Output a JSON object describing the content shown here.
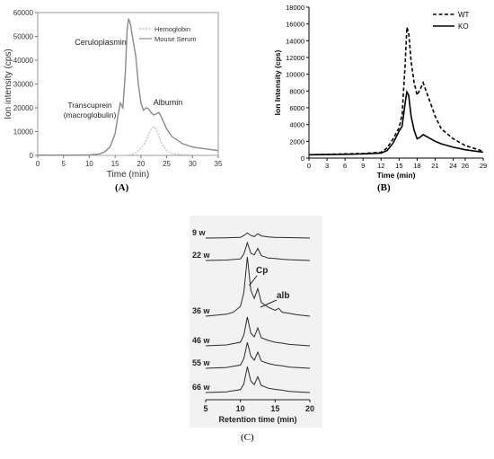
{
  "panels": {
    "a": "(A)",
    "b": "(B)",
    "c": "(C)"
  },
  "chart_data": [
    {
      "type": "line",
      "panel": "(A)",
      "xlabel": "Time (min)",
      "ylabel": "Ion intensity (cps)",
      "xlim": [
        0,
        35
      ],
      "ylim": [
        0,
        60000
      ],
      "xticks": [
        0,
        5,
        10,
        15,
        20,
        25,
        30,
        35
      ],
      "yticks": [
        0,
        10000,
        20000,
        30000,
        40000,
        50000,
        60000
      ],
      "grid": false,
      "legend_position": "top-right",
      "annotations": [
        "Ceruloplasmin",
        "Transcuprein",
        "(macroglobulin)",
        "Albumin"
      ],
      "series": [
        {
          "name": "Hemoglobin",
          "style": "dotted",
          "color": "#b5b5b5",
          "x": [
            0,
            10,
            17,
            18,
            19,
            20,
            21,
            21.5,
            22,
            22.5,
            23,
            23.5,
            24,
            25,
            26,
            28,
            30,
            35
          ],
          "y": [
            0,
            0,
            0,
            200,
            1000,
            3000,
            6000,
            9000,
            11000,
            12000,
            11000,
            8000,
            5000,
            2000,
            800,
            300,
            100,
            0
          ]
        },
        {
          "name": "Mouse Serum",
          "style": "solid",
          "color": "#8a8a8a",
          "x": [
            0,
            5,
            10,
            12,
            13,
            14,
            15,
            15.5,
            16,
            16.5,
            17,
            17.3,
            17.6,
            18,
            18.5,
            19,
            19.5,
            20,
            20.5,
            21,
            21.5,
            22,
            22.5,
            23,
            23.5,
            24,
            25,
            26,
            28,
            30,
            35
          ],
          "y": [
            100,
            100,
            200,
            600,
            1500,
            3500,
            9000,
            16000,
            22000,
            20000,
            35000,
            52000,
            57500,
            55000,
            48000,
            42000,
            30000,
            22000,
            19000,
            20000,
            19500,
            18000,
            17000,
            17500,
            18000,
            16000,
            11000,
            8000,
            5000,
            3500,
            2000
          ]
        }
      ]
    },
    {
      "type": "line",
      "panel": "(B)",
      "xlabel": "Time (min)",
      "ylabel": "Ion Intensity (cps)",
      "xlim": [
        0,
        29
      ],
      "ylim": [
        0,
        18000
      ],
      "xticks": [
        0,
        3,
        6,
        9,
        12,
        15,
        18,
        21,
        24,
        26,
        29
      ],
      "yticks": [
        0,
        2000,
        4000,
        6000,
        8000,
        10000,
        12000,
        14000,
        16000,
        18000
      ],
      "grid": false,
      "legend_position": "top-right",
      "series": [
        {
          "name": "WT",
          "style": "dashed",
          "color": "#000000",
          "x": [
            0,
            3,
            6,
            9,
            12,
            13,
            14,
            15,
            15.5,
            16,
            16.3,
            16.6,
            17,
            17.5,
            18,
            18.5,
            19,
            20,
            21,
            22,
            24,
            26,
            29
          ],
          "y": [
            400,
            450,
            500,
            550,
            700,
            1200,
            2300,
            3600,
            5200,
            11000,
            15600,
            15000,
            11500,
            9000,
            7500,
            8200,
            9000,
            7000,
            5000,
            3500,
            2300,
            1500,
            800
          ]
        },
        {
          "name": "KO",
          "style": "solid",
          "color": "#000000",
          "x": [
            0,
            3,
            6,
            9,
            12,
            13,
            14,
            15,
            15.5,
            16,
            16.3,
            16.6,
            17,
            17.5,
            18,
            18.5,
            19,
            20,
            21,
            22,
            24,
            26,
            29
          ],
          "y": [
            400,
            420,
            450,
            500,
            600,
            900,
            1800,
            3200,
            3800,
            6500,
            7900,
            7500,
            5000,
            3300,
            2300,
            2500,
            2800,
            2400,
            2000,
            1700,
            1300,
            1000,
            700
          ]
        }
      ]
    },
    {
      "type": "line",
      "panel": "(C)",
      "xlabel": "Retention time (min)",
      "xlim": [
        5,
        20
      ],
      "xticks": [
        5,
        10,
        15,
        20
      ],
      "annotations": [
        "Cp",
        "alb"
      ],
      "peaks": {
        "cp_x": 11,
        "alb_x": 12.5
      },
      "series": [
        {
          "name": "9 w",
          "x": [
            5,
            8,
            10,
            10.5,
            11,
            11.5,
            12,
            12.5,
            13,
            14,
            15,
            16,
            17,
            20
          ],
          "y": [
            0,
            0.02,
            0.05,
            0.18,
            0.35,
            0.18,
            0.1,
            0.3,
            0.15,
            0.08,
            0.05,
            0.04,
            0.03,
            0
          ]
        },
        {
          "name": "22 w",
          "x": [
            5,
            8,
            10,
            10.5,
            11,
            11.5,
            12,
            12.5,
            13,
            14,
            15,
            16,
            17,
            20
          ],
          "y": [
            0,
            0.03,
            0.1,
            0.4,
            1.1,
            0.45,
            0.35,
            0.75,
            0.3,
            0.15,
            0.12,
            0.08,
            0.05,
            0
          ]
        },
        {
          "name": "36 w",
          "x": [
            5,
            8,
            9,
            10,
            10.5,
            11,
            11.5,
            12,
            12.5,
            13,
            14,
            15,
            15.5,
            16,
            17,
            18,
            20
          ],
          "y": [
            0,
            0.1,
            0.2,
            0.5,
            1.2,
            3.0,
            1.3,
            0.9,
            1.4,
            0.7,
            0.45,
            0.3,
            0.4,
            0.2,
            0.15,
            0.08,
            0
          ]
        },
        {
          "name": "46 w",
          "x": [
            5,
            8,
            10,
            10.5,
            11,
            11.5,
            12,
            12.5,
            13,
            14,
            15,
            16,
            17,
            20
          ],
          "y": [
            0,
            0.05,
            0.2,
            0.6,
            1.6,
            0.7,
            0.5,
            1.0,
            0.45,
            0.3,
            0.2,
            0.15,
            0.08,
            0
          ]
        },
        {
          "name": "55 w",
          "x": [
            5,
            8,
            10,
            10.5,
            11,
            11.5,
            12,
            12.5,
            13,
            14,
            15,
            16,
            17,
            20
          ],
          "y": [
            0,
            0.05,
            0.2,
            0.6,
            1.6,
            0.75,
            0.5,
            1.0,
            0.45,
            0.3,
            0.2,
            0.15,
            0.08,
            0
          ]
        },
        {
          "name": "66 w",
          "x": [
            5,
            8,
            10,
            10.5,
            11,
            11.5,
            12,
            12.5,
            13,
            14,
            15,
            16,
            17,
            20
          ],
          "y": [
            0,
            0.05,
            0.2,
            0.6,
            1.8,
            0.8,
            0.55,
            1.1,
            0.5,
            0.3,
            0.22,
            0.16,
            0.08,
            0
          ]
        }
      ]
    }
  ]
}
